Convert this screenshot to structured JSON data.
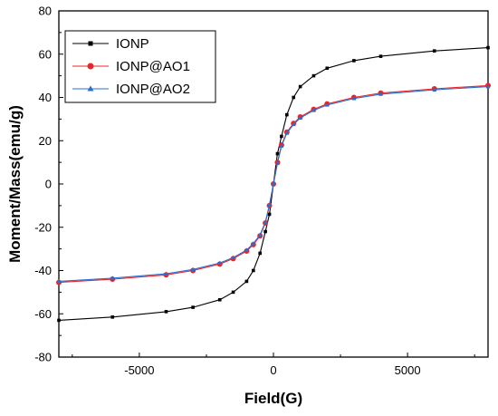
{
  "chart_data": {
    "type": "line",
    "xlabel": "Field(G)",
    "ylabel": "Moment/Mass(emu/g)",
    "xlim": [
      -8000,
      8000
    ],
    "ylim": [
      -80,
      80
    ],
    "xticks": [
      -5000,
      0,
      5000
    ],
    "yticks": [
      -80,
      -60,
      -40,
      -20,
      0,
      20,
      40,
      60,
      80
    ],
    "grid": false,
    "legend_position": "top-left",
    "series": [
      {
        "name": "IONP",
        "color": "#000000",
        "marker": "square",
        "x": [
          -8000,
          -6000,
          -4000,
          -3000,
          -2000,
          -1500,
          -1000,
          -750,
          -500,
          -300,
          -150,
          0,
          150,
          300,
          500,
          750,
          1000,
          1500,
          2000,
          3000,
          4000,
          6000,
          8000
        ],
        "y": [
          -63,
          -61.5,
          -59,
          -57,
          -53.5,
          -50,
          -45,
          -40,
          -32,
          -22,
          -14,
          0,
          14,
          22,
          32,
          40,
          45,
          50,
          53.5,
          57,
          59,
          61.5,
          63
        ]
      },
      {
        "name": "IONP@AO1",
        "color": "#e8262a",
        "marker": "circle",
        "x": [
          -8000,
          -6000,
          -4000,
          -3000,
          -2000,
          -1500,
          -1000,
          -750,
          -500,
          -300,
          -150,
          0,
          150,
          300,
          500,
          750,
          1000,
          1500,
          2000,
          3000,
          4000,
          6000,
          8000
        ],
        "y": [
          -45.5,
          -44,
          -42,
          -40,
          -37,
          -34.5,
          -31,
          -28,
          -24,
          -18,
          -10,
          0,
          10,
          18,
          24,
          28,
          31,
          34.5,
          37,
          40,
          42,
          44,
          45.5
        ]
      },
      {
        "name": "IONP@AO2",
        "color": "#2a6fcf",
        "marker": "triangle",
        "x": [
          -8000,
          -6000,
          -4000,
          -3000,
          -2000,
          -1500,
          -1000,
          -750,
          -500,
          -300,
          -150,
          0,
          150,
          300,
          500,
          750,
          1000,
          1500,
          2000,
          3000,
          4000,
          6000,
          8000
        ],
        "y": [
          -45,
          -43.5,
          -41.5,
          -39.5,
          -36.5,
          -34,
          -30.5,
          -27.5,
          -23.5,
          -17.5,
          -9.5,
          0,
          9.5,
          17.5,
          23.5,
          27.5,
          30.5,
          34,
          36.5,
          39.5,
          41.5,
          43.5,
          45
        ]
      }
    ]
  }
}
